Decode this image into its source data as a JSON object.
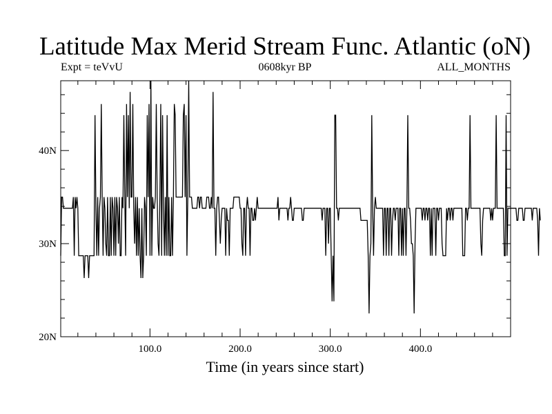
{
  "chart_data": {
    "type": "line",
    "title": "Latitude Max Merid Stream Func. Atlantic (oN)",
    "subtitle_left": "Expt = teVvU",
    "subtitle_center": "0608kyr BP",
    "subtitle_right": "ALL_MONTHS",
    "xlabel": "Time (in years since start)",
    "ylabel": "",
    "xlim": [
      1,
      500
    ],
    "ylim": [
      20,
      47.5
    ],
    "x_ticks": [
      100,
      200,
      300,
      400
    ],
    "x_tick_labels": [
      "100.0",
      "200.0",
      "300.0",
      "400.0"
    ],
    "y_ticks": [
      20,
      30,
      40
    ],
    "y_tick_labels": [
      "20N",
      "30N",
      "40N"
    ],
    "grid": false,
    "series": [
      {
        "values": [
          28.7,
          35,
          35,
          33.8,
          33.8,
          33.8,
          33.8,
          33.8,
          33.8,
          33.8,
          33.8,
          33.8,
          33.8,
          33.8,
          35,
          28.7,
          35,
          33.8,
          35,
          33.8,
          28.7,
          28.7,
          28.7,
          28.7,
          28.7,
          28.7,
          26.3,
          28.7,
          28.7,
          28.7,
          28.7,
          26.3,
          28.7,
          28.7,
          28.7,
          28.7,
          28.7,
          28.7,
          43.8,
          33.8,
          28.7,
          35,
          28.7,
          33.8,
          35,
          45,
          35,
          28.7,
          35,
          33.8,
          30,
          28.7,
          35,
          28.7,
          28.7,
          35,
          28.7,
          35,
          33.8,
          28.7,
          35,
          28.7,
          35,
          33.8,
          30,
          35,
          28.7,
          28.7,
          35,
          33.8,
          43.8,
          35,
          28.7,
          45,
          35,
          43.8,
          33.8,
          46.3,
          35,
          35,
          45,
          33.8,
          30,
          35,
          28.7,
          35,
          28.7,
          33.8,
          28.7,
          26.3,
          33.8,
          26.3,
          28.7,
          35,
          33.8,
          28.7,
          43.8,
          35,
          45,
          28.7,
          47.5,
          28.7,
          35,
          33.8,
          33.8,
          35,
          45,
          35,
          30,
          28.7,
          35,
          45,
          28.7,
          43.8,
          33.8,
          28.7,
          35,
          28.7,
          43.8,
          28.7,
          35,
          28.7,
          28.7,
          35,
          28.7,
          35,
          45,
          43.8,
          35,
          35,
          35,
          35,
          35,
          35,
          35,
          35,
          43.8,
          45,
          35,
          43.8,
          28.7,
          35,
          47.5,
          35,
          35,
          35,
          33.8,
          33.8,
          33.8,
          33.8,
          33.8,
          33.8,
          35,
          35,
          33.8,
          35,
          35,
          33.8,
          33.8,
          33.8,
          33.8,
          33.8,
          35,
          35,
          35,
          33.8,
          33.8,
          35,
          33.8,
          46.3,
          33.8,
          33.8,
          28.7,
          33.8,
          35,
          35,
          32.5,
          30,
          32.5,
          33.8,
          33.8,
          33.8,
          33.8,
          28.7,
          33.8,
          32.5,
          32.5,
          28.7,
          33.8,
          33.8,
          33.8,
          33.8,
          35,
          35,
          35,
          35,
          35,
          35,
          35,
          33.8,
          33.8,
          30,
          28.7,
          33.8,
          33.8,
          28.7,
          33.8,
          35,
          33.8,
          33.8,
          28.7,
          33.8,
          33.8,
          32.5,
          32.5,
          33.8,
          32.5,
          33.8,
          35,
          33.8,
          33.8,
          33.8,
          33.8,
          33.8,
          33.8,
          33.8,
          33.8,
          33.8,
          33.8,
          33.8,
          33.8,
          33.8,
          33.8,
          33.8,
          33.8,
          33.8,
          33.8,
          33.8,
          33.8,
          33.8,
          33.8,
          35,
          32.5,
          33.8,
          33.8,
          33.8,
          33.8,
          33.8,
          33.8,
          33.8,
          33.8,
          33.8,
          32.5,
          33.8,
          33.8,
          35,
          33.8,
          32.5,
          32.5,
          33.8,
          33.8,
          33.8,
          33.8,
          33.8,
          33.8,
          33.8,
          33.8,
          33.8,
          32.5,
          32.5,
          33.8,
          33.8,
          33.8,
          33.8,
          33.8,
          33.8,
          33.8,
          33.8,
          33.8,
          33.8,
          33.8,
          33.8,
          33.8,
          33.8,
          33.8,
          33.8,
          33.8,
          33.8,
          33.8,
          33.8,
          32.5,
          33.8,
          33.8,
          33.8,
          28.7,
          33.8,
          33.8,
          30,
          33.8,
          33.8,
          28.7,
          23.8,
          28.7,
          23.8,
          43.8,
          43.8,
          33.8,
          33.8,
          32.5,
          33.8,
          33.8,
          33.8,
          33.8,
          33.8,
          33.8,
          33.8,
          33.8,
          33.8,
          33.8,
          33.8,
          33.8,
          33.8,
          33.8,
          33.8,
          33.8,
          33.8,
          33.8,
          33.8,
          33.8,
          33.8,
          33.8,
          33.8,
          33.8,
          32.5,
          32.5,
          32.5,
          32.5,
          32.5,
          32.5,
          32.5,
          32.5,
          28.7,
          22.5,
          28.7,
          30,
          43.8,
          33.8,
          28.7,
          33.8,
          35,
          33.8,
          33.8,
          33.8,
          33.8,
          33.8,
          33.8,
          33.8,
          33.8,
          28.7,
          33.8,
          33.8,
          28.7,
          33.8,
          33.8,
          28.7,
          33.8,
          33.8,
          28.7,
          32.5,
          33.8,
          33.8,
          32.5,
          33.8,
          33.8,
          33.8,
          28.7,
          33.8,
          33.8,
          28.7,
          33.8,
          28.7,
          33.8,
          33.8,
          28.7,
          33.8,
          43.8,
          33.8,
          33.8,
          32.5,
          30,
          30,
          28.7,
          22.5,
          30,
          33.8,
          33.8,
          33.8,
          33.8,
          33.8,
          33.8,
          33.8,
          32.5,
          33.8,
          33.8,
          32.5,
          33.8,
          33.8,
          32.5,
          33.8,
          33.8,
          28.7,
          33.8,
          28.7,
          33.8,
          33.8,
          33.8,
          28.7,
          33.8,
          33.8,
          32.5,
          33.8,
          33.8,
          33.8,
          30,
          28.7,
          28.7,
          28.7,
          28.7,
          33.8,
          32.5,
          33.8,
          33.8,
          32.5,
          33.8,
          33.8,
          32.5,
          33.8,
          33.8,
          33.8,
          33.8,
          33.8,
          33.8,
          33.8,
          33.8,
          33.8,
          33.8,
          28.7,
          28.7,
          28.7,
          33.8,
          33.8,
          32.5,
          33.8,
          33.8,
          43.8,
          33.8,
          33.8,
          33.8,
          33.8,
          33.8,
          33.8,
          33.8,
          33.8,
          33.8,
          33.8,
          33.8,
          30,
          28.7,
          32.5,
          33.8,
          33.8,
          33.8,
          33.8,
          33.8,
          33.8,
          33.8,
          33.8,
          32.5,
          33.8,
          32.5,
          33.8,
          33.8,
          33.8,
          43.8,
          33.8,
          33.8,
          33.8,
          33.8,
          33.8,
          33.8,
          33.8,
          33.8,
          28.7,
          28.7,
          43.8,
          28.7,
          33.8,
          33.8,
          33.8,
          33.8,
          33.8,
          33.8,
          33.8,
          33.8,
          33.8,
          33.8,
          32.5,
          32.5,
          33.8,
          33.8,
          33.8,
          33.8,
          33.8,
          32.5,
          32.5,
          33.8,
          33.8,
          33.8,
          33.8,
          33.8,
          33.8,
          33.8,
          33.8,
          32.5,
          33.8,
          33.8,
          33.8,
          33.8,
          33.8,
          32.5,
          28.7,
          33.8,
          32.5
        ]
      }
    ]
  }
}
